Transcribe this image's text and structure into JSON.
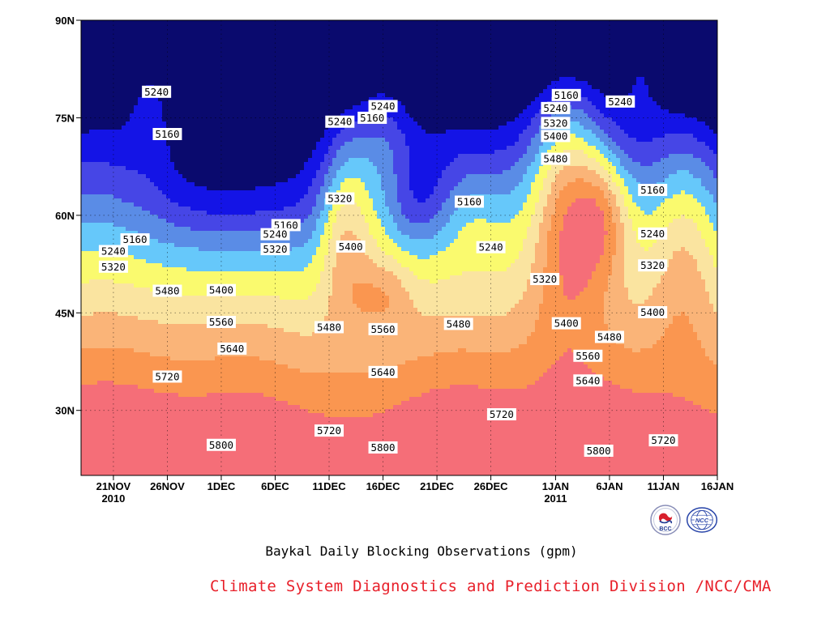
{
  "caption": "Baykal Daily Blocking Observations (gpm)",
  "credit": "Climate System Diagnostics and Prediction Division /NCC/CMA",
  "logos": {
    "bcc": {
      "text": "BCC",
      "color": "#1f3a93"
    },
    "ncc": {
      "text": "NCC",
      "color": "#2643a8"
    }
  },
  "chart_data": {
    "type": "heatmap",
    "subtype": "filled-contour",
    "title": "Baykal Daily Blocking Observations (gpm)",
    "xlabel": "",
    "ylabel": "",
    "x_range": [
      "2010-11-18",
      "2011-01-16"
    ],
    "y_range": [
      20,
      90
    ],
    "y_ticks": [
      {
        "lat": 90,
        "label": "90N"
      },
      {
        "lat": 75,
        "label": "75N"
      },
      {
        "lat": 60,
        "label": "60N"
      },
      {
        "lat": 45,
        "label": "45N"
      },
      {
        "lat": 30,
        "label": "30N"
      }
    ],
    "x_ticks": [
      {
        "day": 3,
        "label": "21NOV",
        "sub": "2010"
      },
      {
        "day": 8,
        "label": "26NOV"
      },
      {
        "day": 13,
        "label": "1DEC"
      },
      {
        "day": 18,
        "label": "6DEC"
      },
      {
        "day": 23,
        "label": "11DEC"
      },
      {
        "day": 28,
        "label": "16DEC"
      },
      {
        "day": 33,
        "label": "21DEC"
      },
      {
        "day": 38,
        "label": "26DEC"
      },
      {
        "day": 44,
        "label": "1JAN",
        "sub": "2011"
      },
      {
        "day": 49,
        "label": "6JAN"
      },
      {
        "day": 54,
        "label": "11JAN"
      },
      {
        "day": 59,
        "label": "16JAN"
      }
    ],
    "grid": true,
    "levels": [
      {
        "value": 5160,
        "color": "#1414e6"
      },
      {
        "value": 5240,
        "color": "#4646e6"
      },
      {
        "value": 5320,
        "color": "#5a8ce6"
      },
      {
        "value": 5400,
        "color": "#66c8fa"
      },
      {
        "value": 5480,
        "color": "#fafa6e"
      },
      {
        "value": 5560,
        "color": "#fae4a0"
      },
      {
        "value": 5640,
        "color": "#fab478"
      },
      {
        "value": 5720,
        "color": "#fa9650"
      },
      {
        "value": 5800,
        "color": "#fa7850"
      }
    ],
    "below_color": "#0a0a6e",
    "above_color": "#f56e78",
    "contour_labels": [
      {
        "t": "5240",
        "day": 7,
        "lat": 79
      },
      {
        "t": "5160",
        "day": 8,
        "lat": 72.5
      },
      {
        "t": "5240",
        "day": 28,
        "lat": 76.8
      },
      {
        "t": "5160",
        "day": 27,
        "lat": 75
      },
      {
        "t": "5240",
        "day": 24,
        "lat": 74.4
      },
      {
        "t": "5160",
        "day": 45,
        "lat": 78.5
      },
      {
        "t": "5240",
        "day": 44,
        "lat": 76.5
      },
      {
        "t": "5240",
        "day": 50,
        "lat": 77.5
      },
      {
        "t": "5320",
        "day": 44,
        "lat": 74.2
      },
      {
        "t": "5400",
        "day": 44,
        "lat": 72.2
      },
      {
        "t": "5480",
        "day": 44,
        "lat": 68.7
      },
      {
        "t": "5160",
        "day": 53,
        "lat": 63.9
      },
      {
        "t": "5160",
        "day": 36,
        "lat": 62.1
      },
      {
        "t": "5320",
        "day": 24,
        "lat": 62.6
      },
      {
        "t": "5160",
        "day": 19,
        "lat": 58.5
      },
      {
        "t": "5160",
        "day": 5,
        "lat": 56.3
      },
      {
        "t": "5240",
        "day": 3,
        "lat": 54.5
      },
      {
        "t": "5240",
        "day": 18,
        "lat": 57.1
      },
      {
        "t": "5240",
        "day": 38,
        "lat": 55.1
      },
      {
        "t": "5240",
        "day": 53,
        "lat": 57.2
      },
      {
        "t": "5320",
        "day": 18,
        "lat": 54.8
      },
      {
        "t": "5320",
        "day": 3,
        "lat": 52.1
      },
      {
        "t": "5400",
        "day": 25,
        "lat": 55.2
      },
      {
        "t": "5320",
        "day": 43,
        "lat": 50.2
      },
      {
        "t": "5320",
        "day": 53,
        "lat": 52.3
      },
      {
        "t": "5480",
        "day": 8,
        "lat": 48.4
      },
      {
        "t": "5400",
        "day": 13,
        "lat": 48.5
      },
      {
        "t": "5400",
        "day": 53,
        "lat": 45.1
      },
      {
        "t": "5560",
        "day": 13,
        "lat": 43.6
      },
      {
        "t": "5480",
        "day": 23,
        "lat": 42.8
      },
      {
        "t": "5560",
        "day": 28,
        "lat": 42.5
      },
      {
        "t": "5480",
        "day": 35,
        "lat": 43.3
      },
      {
        "t": "5400",
        "day": 45,
        "lat": 43.4
      },
      {
        "t": "5480",
        "day": 49,
        "lat": 41.3
      },
      {
        "t": "5640",
        "day": 14,
        "lat": 39.5
      },
      {
        "t": "5560",
        "day": 47,
        "lat": 38.4
      },
      {
        "t": "5640",
        "day": 28,
        "lat": 35.9
      },
      {
        "t": "5640",
        "day": 47,
        "lat": 34.6
      },
      {
        "t": "5720",
        "day": 8,
        "lat": 35.2
      },
      {
        "t": "5720",
        "day": 39,
        "lat": 29.4
      },
      {
        "t": "5720",
        "day": 23,
        "lat": 26.9
      },
      {
        "t": "5720",
        "day": 54,
        "lat": 25.4
      },
      {
        "t": "5800",
        "day": 13,
        "lat": 24.7
      },
      {
        "t": "5800",
        "day": 28,
        "lat": 24.3
      },
      {
        "t": "5800",
        "day": 48,
        "lat": 23.8
      }
    ]
  }
}
